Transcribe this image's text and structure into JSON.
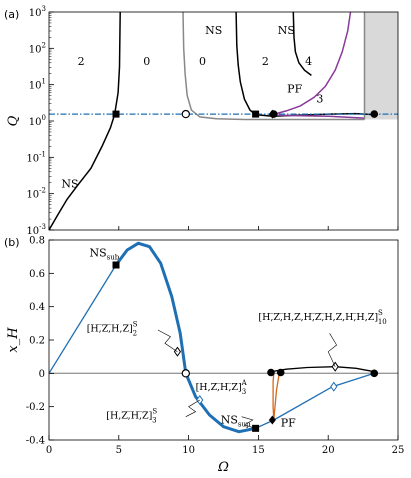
{
  "chart_data": [
    {
      "panel": "(a)",
      "type": "line",
      "ylabel": "Q",
      "yscale": "log",
      "xlim": [
        0,
        25
      ],
      "ylim": [
        0.001,
        1000
      ],
      "x_ticks": [],
      "y_ticks": [
        "10^{-3}",
        "10^{-2}",
        "10^{-1}",
        "10^{0}",
        "10^{1}",
        "10^{2}",
        "10^{3}"
      ],
      "grid": false,
      "region_counts": [
        {
          "label": "2",
          "x": 2.3,
          "y": 35
        },
        {
          "label": "0",
          "x": 7.0,
          "y": 35
        },
        {
          "label": "0",
          "x": 11.0,
          "y": 35
        },
        {
          "label": "2",
          "x": 15.5,
          "y": 35
        },
        {
          "label": "4",
          "x": 18.6,
          "y": 35
        },
        {
          "label": "3",
          "x": 19.4,
          "y": 3.2
        }
      ],
      "annotations": [
        {
          "text": "NS",
          "x": 1.5,
          "y": 0.015
        },
        {
          "text": "NS",
          "x": 11.8,
          "y": 250
        },
        {
          "text": "NS",
          "x": 17.0,
          "y": 250
        },
        {
          "text": "PF",
          "x": 17.6,
          "y": 6.0
        }
      ],
      "series": [
        {
          "role": "NS branch",
          "color": "#000000",
          "points": [
            [
              0,
              0.001
            ],
            [
              0.6,
              0.0025
            ],
            [
              1.3,
              0.007
            ],
            [
              2.1,
              0.018
            ],
            [
              3.0,
              0.05
            ],
            [
              3.8,
              0.2
            ],
            [
              4.4,
              0.65
            ],
            [
              4.7,
              1.5
            ],
            [
              4.95,
              6
            ],
            [
              5.05,
              30
            ],
            [
              5.1,
              1000
            ]
          ]
        },
        {
          "role": "boundary",
          "color": "#888888",
          "points": [
            [
              9.6,
              1000
            ],
            [
              9.65,
              100
            ],
            [
              9.75,
              20
            ],
            [
              9.9,
              5
            ],
            [
              10.2,
              2
            ],
            [
              10.8,
              1.3
            ],
            [
              12,
              1.15
            ],
            [
              14,
              1.1
            ],
            [
              16,
              1.1
            ],
            [
              18,
              1.1
            ],
            [
              20,
              1.1
            ],
            [
              22.6,
              1.1
            ]
          ]
        },
        {
          "role": "NS branch",
          "color": "#000000",
          "points": [
            [
              13.4,
              1000
            ],
            [
              13.45,
              120
            ],
            [
              13.55,
              35
            ],
            [
              13.7,
              12
            ],
            [
              14.0,
              4
            ],
            [
              14.4,
              2
            ],
            [
              14.8,
              1.5
            ],
            [
              16.0,
              1.35
            ],
            [
              18.0,
              1.45
            ],
            [
              20.0,
              1.55
            ],
            [
              22.0,
              1.6
            ],
            [
              23.3,
              1.5
            ]
          ]
        },
        {
          "role": "NS branch",
          "color": "#000000",
          "points": [
            [
              17.5,
              1000
            ],
            [
              17.55,
              200
            ],
            [
              17.65,
              80
            ],
            [
              17.9,
              40
            ],
            [
              18.3,
              25
            ],
            [
              18.8,
              18
            ]
          ]
        },
        {
          "role": "PF branch",
          "color": "#8a3a9a",
          "points": [
            [
              16.0,
              1.5
            ],
            [
              17.0,
              1.9
            ],
            [
              18.0,
              2.6
            ],
            [
              19.0,
              4.5
            ],
            [
              19.8,
              9
            ],
            [
              20.5,
              25
            ],
            [
              21.0,
              80
            ],
            [
              21.4,
              300
            ],
            [
              21.6,
              1000
            ]
          ]
        },
        {
          "role": "PF branch",
          "color": "#8a3a9a",
          "points": [
            [
              16.0,
              1.45
            ],
            [
              18,
              1.4
            ],
            [
              20,
              1.35
            ],
            [
              22.6,
              1.2
            ]
          ]
        },
        {
          "role": "shaded edge",
          "color": "#888888",
          "points": [
            [
              22.6,
              1000
            ],
            [
              22.6,
              1.1
            ]
          ]
        },
        {
          "role": "dashed line",
          "color": "#1f6fb4",
          "style": "dash-dot",
          "points": [
            [
              0,
              1.55
            ],
            [
              25,
              1.55
            ]
          ]
        }
      ],
      "markers": [
        {
          "x": 4.8,
          "y": 1.55,
          "shape": "square"
        },
        {
          "x": 9.8,
          "y": 1.55,
          "shape": "open-circle"
        },
        {
          "x": 14.8,
          "y": 1.55,
          "shape": "square"
        },
        {
          "x": 16.1,
          "y": 1.55,
          "shape": "circle"
        },
        {
          "x": 16.0,
          "y": 1.55,
          "shape": "diamond"
        },
        {
          "x": 23.3,
          "y": 1.55,
          "shape": "circle"
        }
      ],
      "shaded_region": {
        "x": [
          22.6,
          25
        ],
        "y": [
          1.1,
          1000
        ]
      }
    },
    {
      "panel": "(b)",
      "type": "line",
      "xlabel": "Ω",
      "ylabel": "x_H",
      "xlim": [
        0,
        25
      ],
      "ylim": [
        -0.4,
        0.8
      ],
      "x_ticks": [
        "0",
        "5",
        "10",
        "15",
        "20",
        "25"
      ],
      "y_ticks": [
        "-0.4",
        "-0.2",
        "0",
        "0.2",
        "0.4",
        "0.6",
        "0.8"
      ],
      "grid": false,
      "annotations": [
        {
          "text": "NS",
          "sub": "sub",
          "x": 2.9,
          "y": 0.7
        },
        {
          "text": "NS",
          "sub": "sup",
          "x": 12.3,
          "y": -0.3
        },
        {
          "text": "PF",
          "x": 16.6,
          "y": -0.32
        },
        {
          "text": "[H,̅Z,̅H,Z]",
          "sup": "S",
          "sub": "2",
          "x": 2.7,
          "y": 0.25
        },
        {
          "text": "[H,̅Z,̅H,Z,H,̅Z,̅H,Z,H,̅H,Z]",
          "sup": "S",
          "sub": "10",
          "x": 15.0,
          "y": 0.32
        },
        {
          "text": "[H,Z,̅H,̅Z]",
          "sup": "A",
          "sub": "3",
          "x": 10.5,
          "y": -0.1
        },
        {
          "text": "[H,Z,̅H,̅Z]",
          "sup": "S",
          "sub": "3",
          "x": 4.1,
          "y": -0.27
        }
      ],
      "series": [
        {
          "role": "left branch",
          "color": "#1f6fb4",
          "points": [
            [
              0,
              0
            ],
            [
              4.8,
              0.65
            ]
          ]
        },
        {
          "role": "S2 branch",
          "color": "#1f6fb4",
          "stroke": "thick",
          "points": [
            [
              4.8,
              0.65
            ],
            [
              5.6,
              0.74
            ],
            [
              6.4,
              0.78
            ],
            [
              7.2,
              0.76
            ],
            [
              8.0,
              0.66
            ],
            [
              8.8,
              0.46
            ],
            [
              9.4,
              0.24
            ],
            [
              9.8,
              0
            ]
          ]
        },
        {
          "role": "S3 branch",
          "color": "#1f6fb4",
          "stroke": "thick",
          "points": [
            [
              9.8,
              0
            ],
            [
              10.5,
              -0.14
            ],
            [
              11.5,
              -0.25
            ],
            [
              12.5,
              -0.32
            ],
            [
              13.6,
              -0.35
            ],
            [
              14.8,
              -0.33
            ]
          ]
        },
        {
          "role": "right branch",
          "color": "#1f6fb4",
          "points": [
            [
              14.8,
              -0.33
            ],
            [
              16.1,
              -0.28
            ],
            [
              20.3,
              -0.08
            ],
            [
              23.3,
              0
            ]
          ]
        },
        {
          "role": "zero line",
          "color": "#999999",
          "points": [
            [
              0,
              0
            ],
            [
              25,
              0
            ]
          ]
        },
        {
          "role": "S10 branch",
          "color": "#000000",
          "points": [
            [
              15.9,
              0.01
            ],
            [
              17.0,
              0.025
            ],
            [
              18.5,
              0.035
            ],
            [
              20.5,
              0.04
            ],
            [
              22.0,
              0.03
            ],
            [
              23.3,
              0.01
            ]
          ]
        },
        {
          "role": "A3 branch",
          "color": "#d4681c",
          "points": [
            [
              16.1,
              -0.28
            ],
            [
              16.05,
              -0.2
            ],
            [
              16.05,
              -0.05
            ],
            [
              16.1,
              0
            ]
          ]
        },
        {
          "role": "A3 branch",
          "color": "#d4681c",
          "points": [
            [
              16.1,
              -0.28
            ],
            [
              16.3,
              -0.1
            ],
            [
              16.5,
              0
            ]
          ]
        }
      ],
      "markers": [
        {
          "x": 4.8,
          "y": 0.65,
          "shape": "square"
        },
        {
          "x": 9.2,
          "y": 0.13,
          "shape": "open-diamond"
        },
        {
          "x": 9.8,
          "y": 0,
          "shape": "open-circle"
        },
        {
          "x": 10.8,
          "y": -0.16,
          "shape": "open-diamond"
        },
        {
          "x": 14.8,
          "y": -0.33,
          "shape": "square"
        },
        {
          "x": 16.0,
          "y": -0.28,
          "shape": "diamond"
        },
        {
          "x": 15.9,
          "y": 0.005,
          "shape": "circle"
        },
        {
          "x": 16.6,
          "y": 0.005,
          "shape": "circle"
        },
        {
          "x": 20.5,
          "y": 0.04,
          "shape": "open-diamond"
        },
        {
          "x": 20.4,
          "y": -0.08,
          "shape": "open-diamond"
        },
        {
          "x": 23.3,
          "y": 0,
          "shape": "circle"
        }
      ]
    }
  ]
}
